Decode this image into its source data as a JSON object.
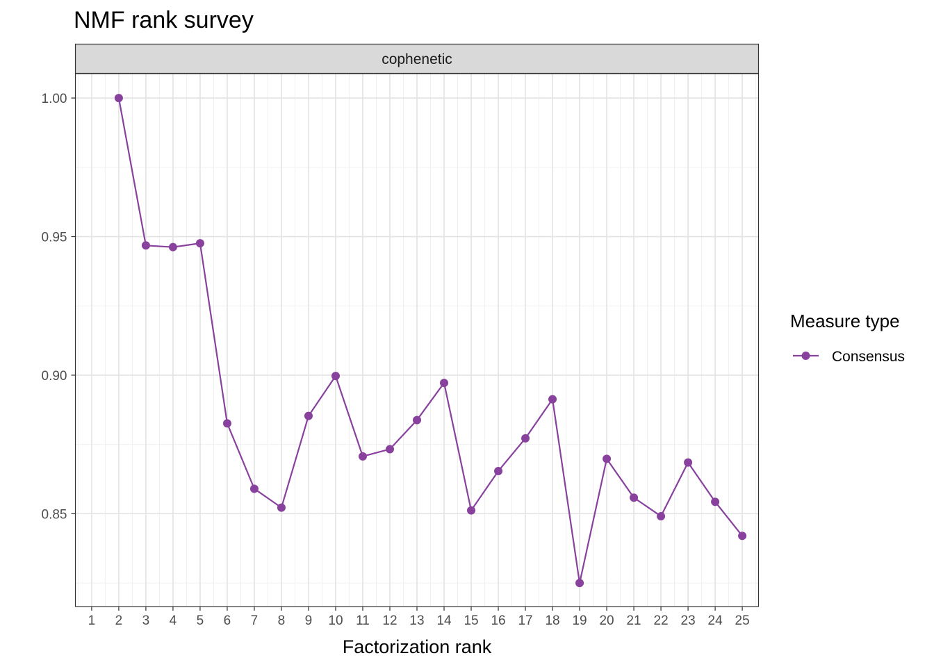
{
  "chart_data": {
    "type": "line",
    "title": "NMF rank survey",
    "facet": "cophenetic",
    "xlabel": "Factorization rank",
    "ylabel": "",
    "x_ticks": [
      1,
      2,
      3,
      4,
      5,
      6,
      7,
      8,
      9,
      10,
      11,
      12,
      13,
      14,
      15,
      16,
      17,
      18,
      19,
      20,
      21,
      22,
      23,
      24,
      25
    ],
    "xlim": [
      0.4,
      25.6
    ],
    "y_ticks": [
      0.85,
      0.9,
      0.95,
      1.0
    ],
    "y_tick_labels": [
      "0.85",
      "0.90",
      "0.95",
      "1.00"
    ],
    "ylim": [
      0.8165,
      1.0088
    ],
    "grid": true,
    "legend": {
      "title": "Measure type",
      "position": "right"
    },
    "series": [
      {
        "name": "Consensus",
        "color": "#88419d",
        "x": [
          2,
          3,
          4,
          5,
          6,
          7,
          8,
          9,
          10,
          11,
          12,
          13,
          14,
          15,
          16,
          17,
          18,
          19,
          20,
          21,
          22,
          23,
          24,
          25
        ],
        "y": [
          1.0,
          0.9468,
          0.9462,
          0.9476,
          0.8826,
          0.859,
          0.8522,
          0.8853,
          0.8997,
          0.8707,
          0.8733,
          0.8838,
          0.8972,
          0.8512,
          0.8654,
          0.8772,
          0.8913,
          0.825,
          0.8698,
          0.8558,
          0.8491,
          0.8685,
          0.8543,
          0.842
        ]
      }
    ]
  }
}
